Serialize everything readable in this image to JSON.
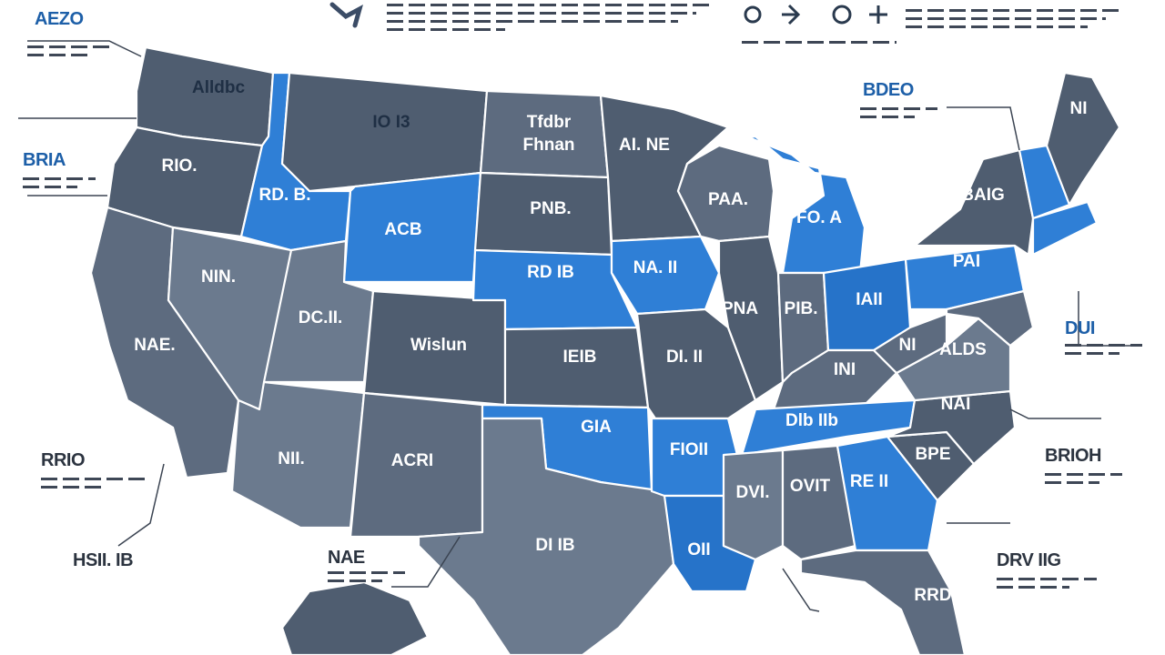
{
  "states": [
    {
      "label": "Alldbc"
    },
    {
      "label": "IO I3"
    },
    {
      "label": "Tfdbr"
    },
    {
      "label": "Fhnan"
    },
    {
      "label": "AI. NE"
    },
    {
      "label": "RIO."
    },
    {
      "label": "RD. B."
    },
    {
      "label": "ACB"
    },
    {
      "label": "PNB."
    },
    {
      "label": "RD IB"
    },
    {
      "label": "NA. II"
    },
    {
      "label": "PAA."
    },
    {
      "label": "FO. A"
    },
    {
      "label": "BAIG"
    },
    {
      "label": "NIN."
    },
    {
      "label": "DC.II."
    },
    {
      "label": "NAE."
    },
    {
      "label": "Wislun"
    },
    {
      "label": "IEIB"
    },
    {
      "label": "DI. II"
    },
    {
      "label": "PNA"
    },
    {
      "label": "PIB."
    },
    {
      "label": "IAII"
    },
    {
      "label": "PAI"
    },
    {
      "label": "NI"
    },
    {
      "label": "INI"
    },
    {
      "label": "ALDS"
    },
    {
      "label": "Dlb IIb"
    },
    {
      "label": "NAI"
    },
    {
      "label": "GIA"
    },
    {
      "label": "FIOII"
    },
    {
      "label": "NII."
    },
    {
      "label": "ACRI"
    },
    {
      "label": "BPE"
    },
    {
      "label": "DVI."
    },
    {
      "label": "OVIT"
    },
    {
      "label": "RE II"
    },
    {
      "label": "OII"
    },
    {
      "label": "DI IB"
    },
    {
      "label": "RRD"
    },
    {
      "label": "NI"
    }
  ],
  "callouts": {
    "tl": "AEZO",
    "left": "BRIA",
    "left2": "RRIO",
    "bottomleft": "HSII. IB",
    "ne1": "BDEO",
    "e1": "DUI",
    "e2": "BRIOH",
    "se1": "DRV IIG",
    "bottom": "NAE"
  }
}
